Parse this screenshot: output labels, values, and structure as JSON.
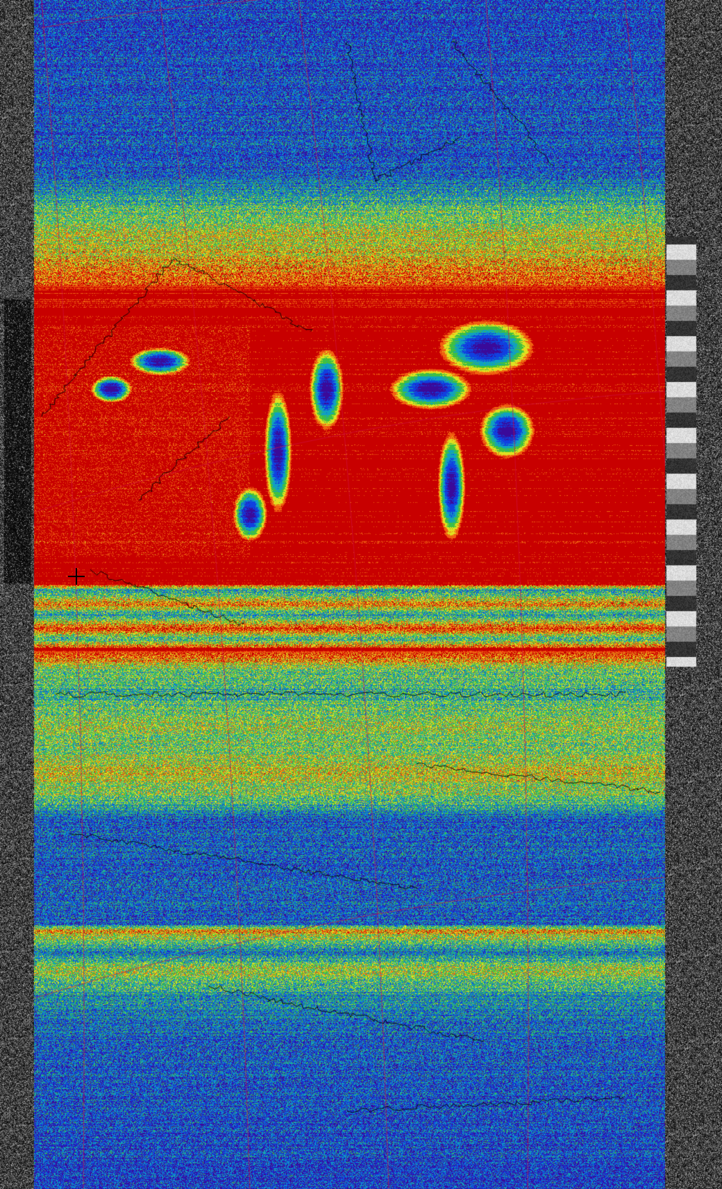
{
  "image": {
    "kind": "false-color satellite image with coastline and graticule overlay",
    "palette": {
      "deep": "#3a0a9a",
      "blue": "#1040e0",
      "cyan": "#10a0c0",
      "green": "#40c040",
      "yellow": "#e0e020",
      "orange": "#f06010",
      "red": "#c80000",
      "coastline": "#000000",
      "graticule": "#d01040"
    },
    "side_strips": "grayscale noise"
  }
}
